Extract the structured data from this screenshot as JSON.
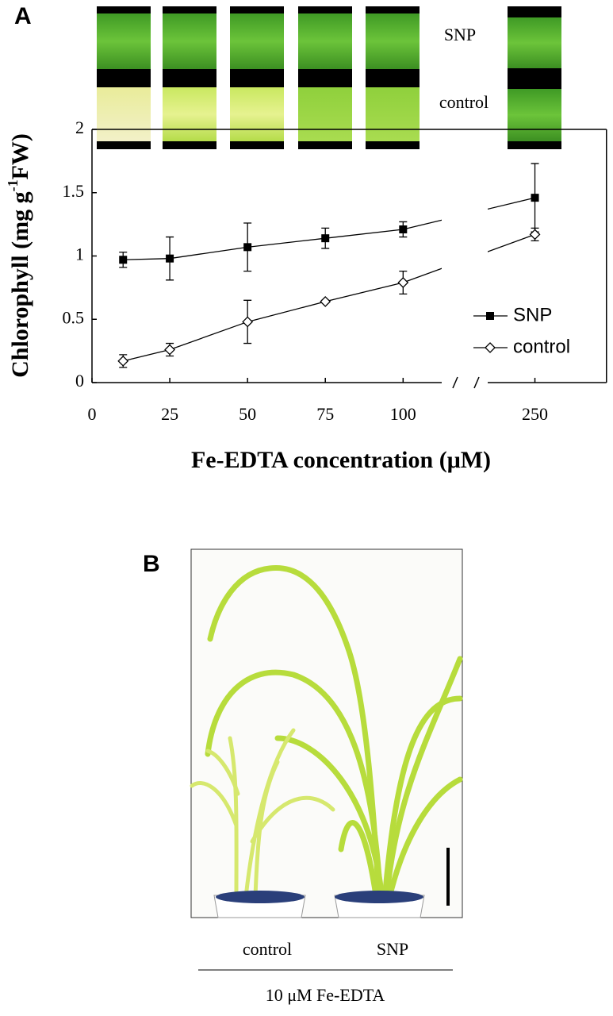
{
  "panel_a": {
    "letter": "A",
    "leaf_labels": [
      "SNP",
      "control"
    ]
  },
  "chart_data": {
    "type": "line",
    "ylabel": "Chlorophyll (mg g",
    "ylabel_sup": "-1",
    "ylabel_end": "FW)",
    "xlabel": "Fe-EDTA concentration (μM)",
    "x": [
      10,
      25,
      50,
      75,
      100,
      250
    ],
    "series": [
      {
        "name": "SNP",
        "color": "#000000",
        "marker": "square",
        "values": [
          0.97,
          0.98,
          1.07,
          1.14,
          1.21,
          1.46
        ],
        "errors": [
          0.06,
          0.17,
          0.19,
          0.08,
          0.06,
          0.27
        ]
      },
      {
        "name": "control",
        "color": "#000000",
        "marker": "diamond",
        "values": [
          0.17,
          0.26,
          0.48,
          0.64,
          0.79,
          1.17
        ],
        "errors": [
          0.05,
          0.05,
          0.17,
          0.01,
          0.09,
          0.05
        ]
      }
    ],
    "xlim": [
      0,
      273
    ],
    "xbreak": [
      117,
      231
    ],
    "xticks": [
      0,
      25,
      50,
      75,
      100,
      250
    ],
    "ylim": [
      0,
      2
    ],
    "yticks": [
      0,
      0.5,
      1,
      1.5,
      2
    ],
    "legend": "right"
  },
  "panel_b": {
    "letter": "B",
    "labels": [
      "control",
      "SNP"
    ],
    "treatment": "10 μM Fe-EDTA"
  }
}
